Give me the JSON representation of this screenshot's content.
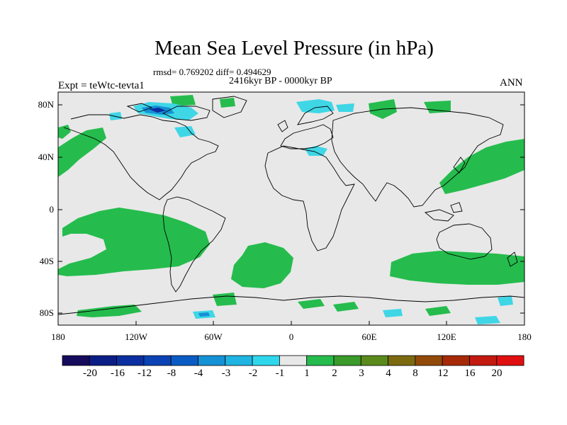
{
  "title": "Mean Sea Level Pressure (in hPa)",
  "stats_line": "rmsd= 0.769202 diff= 0.494629",
  "period_line": "2416kyr BP - 0000kyr BP",
  "experiment_line": "Expt = teWtc-tevta1",
  "season": "ANN",
  "lat_labels": [
    "80N",
    "40N",
    "0",
    "40S",
    "80S"
  ],
  "lon_labels": [
    "180",
    "120W",
    "60W",
    "0",
    "60E",
    "120E",
    "180"
  ],
  "colorbar": {
    "labels": [
      "-20",
      "-16",
      "-12",
      "-8",
      "-4",
      "-3",
      "-2",
      "-1",
      "1",
      "2",
      "3",
      "4",
      "8",
      "12",
      "16",
      "20"
    ],
    "colors": [
      "#160a5c",
      "#0b1e86",
      "#0b2fa0",
      "#0b42b4",
      "#0a5cc4",
      "#1591d6",
      "#1fb4e2",
      "#2ed7ec",
      "#e8e8e8",
      "#25bc4d",
      "#3a9a2a",
      "#5a8a1c",
      "#7b6a10",
      "#924a0a",
      "#a62a08",
      "#c21a10",
      "#e01010"
    ]
  },
  "colors": {
    "background": "#e8e8e8",
    "positive": "#25bc4d",
    "negative_light": "#3fd6e6",
    "negative_mid": "#1591d6",
    "negative_dark": "#0b2fa0"
  }
}
